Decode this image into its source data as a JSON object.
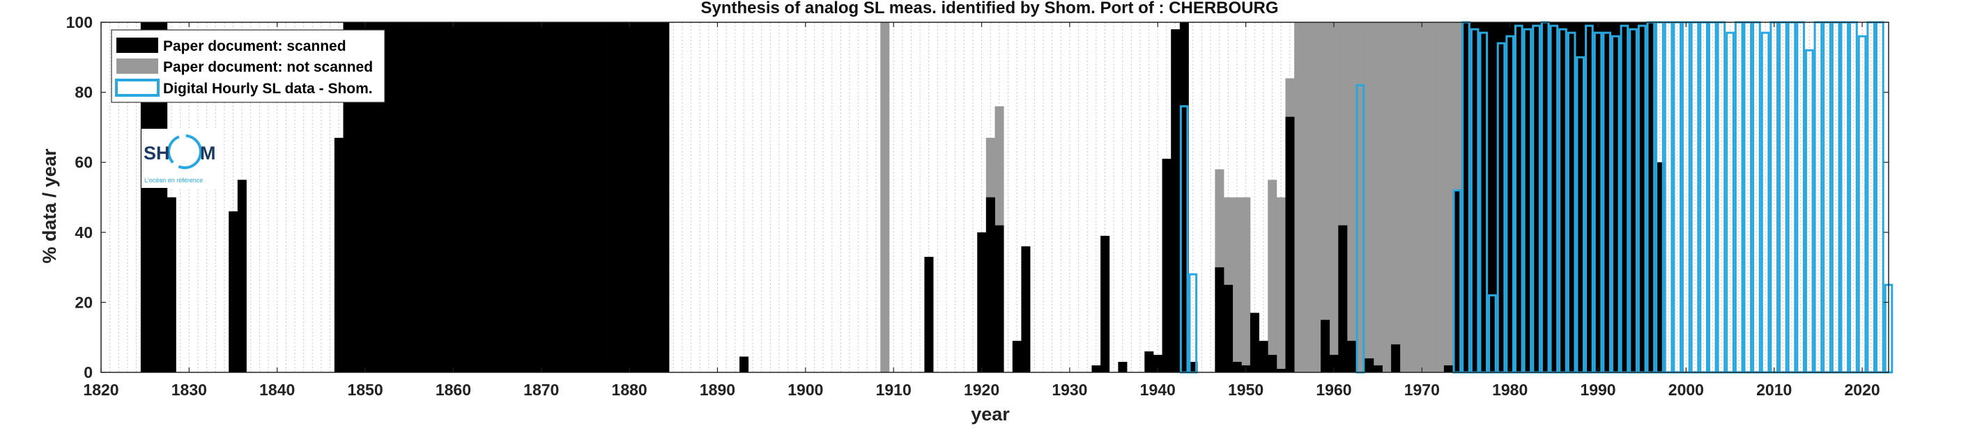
{
  "chart_data": {
    "type": "bar",
    "title": "Synthesis of analog SL meas. identified by Shom. Port of : CHERBOURG",
    "xlabel": "year",
    "ylabel": "% data / year",
    "xlim": [
      1820,
      2023
    ],
    "ylim": [
      0,
      100
    ],
    "xticks": [
      1820,
      1830,
      1840,
      1850,
      1860,
      1870,
      1880,
      1890,
      1900,
      1910,
      1920,
      1930,
      1940,
      1950,
      1960,
      1970,
      1980,
      1990,
      2000,
      2010,
      2020
    ],
    "yticks": [
      0,
      20,
      40,
      60,
      80,
      100
    ],
    "grid": "vertical every year, dotted",
    "legend_position": "top-left",
    "series": [
      {
        "name": "Paper document: scanned",
        "color": "#000000",
        "style": "filled",
        "points": [
          [
            1825,
            100
          ],
          [
            1826,
            100
          ],
          [
            1827,
            100
          ],
          [
            1828,
            50
          ],
          [
            1835,
            46
          ],
          [
            1836,
            55
          ],
          [
            1847,
            67
          ],
          [
            1848,
            100
          ],
          [
            1849,
            100
          ],
          [
            1850,
            100
          ],
          [
            1851,
            100
          ],
          [
            1852,
            100
          ],
          [
            1853,
            100
          ],
          [
            1854,
            100
          ],
          [
            1855,
            100
          ],
          [
            1856,
            100
          ],
          [
            1857,
            100
          ],
          [
            1858,
            100
          ],
          [
            1859,
            100
          ],
          [
            1860,
            100
          ],
          [
            1861,
            100
          ],
          [
            1862,
            100
          ],
          [
            1863,
            100
          ],
          [
            1864,
            100
          ],
          [
            1865,
            100
          ],
          [
            1866,
            100
          ],
          [
            1867,
            100
          ],
          [
            1868,
            100
          ],
          [
            1869,
            100
          ],
          [
            1870,
            100
          ],
          [
            1871,
            100
          ],
          [
            1872,
            100
          ],
          [
            1873,
            100
          ],
          [
            1874,
            100
          ],
          [
            1875,
            100
          ],
          [
            1876,
            100
          ],
          [
            1877,
            100
          ],
          [
            1878,
            100
          ],
          [
            1879,
            100
          ],
          [
            1880,
            100
          ],
          [
            1881,
            100
          ],
          [
            1882,
            100
          ],
          [
            1883,
            100
          ],
          [
            1884,
            100
          ],
          [
            1893,
            4.5
          ],
          [
            1914,
            33
          ],
          [
            1920,
            40
          ],
          [
            1921,
            50
          ],
          [
            1922,
            42
          ],
          [
            1924,
            9
          ],
          [
            1925,
            36
          ],
          [
            1933,
            2
          ],
          [
            1934,
            39
          ],
          [
            1936,
            3
          ],
          [
            1939,
            6
          ],
          [
            1940,
            5
          ],
          [
            1941,
            61
          ],
          [
            1942,
            98
          ],
          [
            1943,
            100
          ],
          [
            1944,
            3
          ],
          [
            1947,
            30
          ],
          [
            1948,
            25
          ],
          [
            1949,
            3
          ],
          [
            1950,
            2
          ],
          [
            1951,
            17
          ],
          [
            1952,
            9
          ],
          [
            1953,
            5
          ],
          [
            1954,
            1
          ],
          [
            1955,
            73
          ],
          [
            1959,
            15
          ],
          [
            1960,
            5
          ],
          [
            1961,
            42
          ],
          [
            1962,
            9
          ],
          [
            1964,
            4
          ],
          [
            1965,
            2
          ],
          [
            1967,
            8
          ],
          [
            1973,
            2
          ],
          [
            1974,
            52
          ],
          [
            1975,
            100
          ],
          [
            1976,
            100
          ],
          [
            1977,
            100
          ],
          [
            1978,
            100
          ],
          [
            1979,
            100
          ],
          [
            1980,
            100
          ],
          [
            1981,
            100
          ],
          [
            1982,
            100
          ],
          [
            1983,
            100
          ],
          [
            1984,
            100
          ],
          [
            1985,
            100
          ],
          [
            1986,
            100
          ],
          [
            1987,
            100
          ],
          [
            1988,
            100
          ],
          [
            1989,
            100
          ],
          [
            1990,
            100
          ],
          [
            1991,
            100
          ],
          [
            1992,
            100
          ],
          [
            1993,
            100
          ],
          [
            1994,
            100
          ],
          [
            1995,
            100
          ],
          [
            1996,
            100
          ],
          [
            1997,
            60
          ]
        ]
      },
      {
        "name": "Paper document: not scanned",
        "color": "#999999",
        "style": "filled",
        "points": [
          [
            1909,
            100
          ],
          [
            1921,
            67
          ],
          [
            1922,
            76
          ],
          [
            1947,
            58
          ],
          [
            1948,
            50
          ],
          [
            1949,
            50
          ],
          [
            1950,
            50
          ],
          [
            1953,
            55
          ],
          [
            1954,
            50
          ],
          [
            1955,
            84
          ],
          [
            1956,
            100
          ],
          [
            1957,
            100
          ],
          [
            1958,
            100
          ],
          [
            1959,
            100
          ],
          [
            1960,
            100
          ],
          [
            1961,
            100
          ],
          [
            1962,
            100
          ],
          [
            1963,
            100
          ],
          [
            1964,
            100
          ],
          [
            1965,
            100
          ],
          [
            1966,
            100
          ],
          [
            1967,
            100
          ],
          [
            1968,
            100
          ],
          [
            1969,
            100
          ],
          [
            1970,
            100
          ],
          [
            1971,
            100
          ],
          [
            1972,
            100
          ],
          [
            1973,
            100
          ],
          [
            1974,
            100
          ],
          [
            1975,
            100
          ],
          [
            1976,
            100
          ],
          [
            1977,
            100
          ],
          [
            1978,
            100
          ]
        ]
      },
      {
        "name": "Digital Hourly SL data - Shom.",
        "color": "#29a8e0",
        "style": "outline",
        "points": [
          [
            1943,
            76
          ],
          [
            1944,
            28
          ],
          [
            1963,
            82
          ],
          [
            1974,
            52
          ],
          [
            1975,
            100
          ],
          [
            1976,
            98
          ],
          [
            1977,
            97
          ],
          [
            1978,
            22
          ],
          [
            1979,
            94
          ],
          [
            1980,
            96
          ],
          [
            1981,
            99
          ],
          [
            1982,
            98
          ],
          [
            1983,
            99
          ],
          [
            1984,
            100
          ],
          [
            1985,
            99
          ],
          [
            1986,
            98
          ],
          [
            1987,
            97
          ],
          [
            1988,
            90
          ],
          [
            1989,
            99
          ],
          [
            1990,
            97
          ],
          [
            1991,
            97
          ],
          [
            1992,
            96
          ],
          [
            1993,
            99
          ],
          [
            1994,
            98
          ],
          [
            1995,
            99
          ],
          [
            1996,
            100
          ],
          [
            1997,
            100
          ],
          [
            1998,
            100
          ],
          [
            1999,
            100
          ],
          [
            2000,
            100
          ],
          [
            2001,
            100
          ],
          [
            2002,
            100
          ],
          [
            2003,
            100
          ],
          [
            2004,
            100
          ],
          [
            2005,
            97
          ],
          [
            2006,
            100
          ],
          [
            2007,
            100
          ],
          [
            2008,
            100
          ],
          [
            2009,
            97
          ],
          [
            2010,
            100
          ],
          [
            2011,
            100
          ],
          [
            2012,
            100
          ],
          [
            2013,
            100
          ],
          [
            2014,
            92
          ],
          [
            2015,
            100
          ],
          [
            2016,
            100
          ],
          [
            2017,
            100
          ],
          [
            2018,
            100
          ],
          [
            2019,
            100
          ],
          [
            2020,
            96
          ],
          [
            2021,
            100
          ],
          [
            2022,
            100
          ],
          [
            2023,
            25
          ]
        ]
      }
    ]
  },
  "logo": {
    "left_text": "SH",
    "right_text": "M",
    "tagline": "L'océan en référence",
    "ring_color": "#29a8e0",
    "text_color": "#1d3a63"
  }
}
